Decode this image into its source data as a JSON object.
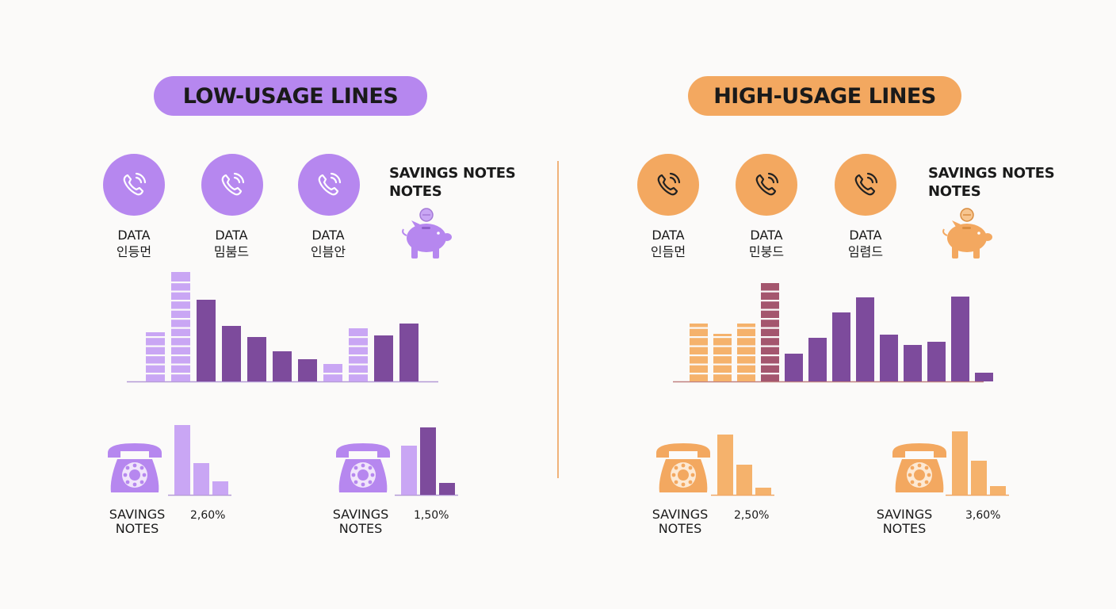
{
  "left": {
    "title": "LOW-USAGE LINES",
    "accent": "#b687ef",
    "accent_dark": "#7a4a9c",
    "phones": [
      {
        "line1": "DATA",
        "line2": "인등먼"
      },
      {
        "line1": "DATA",
        "line2": "밈붐드"
      },
      {
        "line1": "DATA",
        "line2": "인븜안"
      }
    ],
    "savings_heading": [
      "SAVINGS NOTES",
      "NOTES"
    ],
    "icon_names": {
      "phone": "phone-call-icon",
      "pig": "piggy-bank-icon",
      "telephone": "rotary-telephone-icon"
    },
    "sub_charts": [
      {
        "label": [
          "SAVINGS",
          "NOTES"
        ],
        "percent": "2,60%",
        "values": [
          88,
          40,
          17
        ]
      },
      {
        "label": [
          "SAVINGS",
          "NOTES"
        ],
        "percent": "1,50%",
        "values": [
          62,
          85,
          15
        ]
      }
    ]
  },
  "right": {
    "title": "HIGH-USAGE LINES",
    "accent": "#f3a860",
    "accent_dark": "#7a3e78",
    "phones": [
      {
        "line1": "DATA",
        "line2": "인듬먼"
      },
      {
        "line1": "DATA",
        "line2": "민붕드"
      },
      {
        "line1": "DATA",
        "line2": "임렴드"
      }
    ],
    "savings_heading": [
      "SAVINGS NOTES",
      "NOTES"
    ],
    "icon_names": {
      "phone": "phone-call-icon",
      "pig": "piggy-bank-icon",
      "telephone": "rotary-telephone-icon"
    },
    "sub_charts": [
      {
        "label": [
          "SAVINGS",
          "NOTES"
        ],
        "percent": "2,50%",
        "values": [
          76,
          38,
          9
        ]
      },
      {
        "label": [
          "SAVINGS",
          "NOTES"
        ],
        "percent": "3,60%",
        "values": [
          80,
          43,
          11
        ]
      }
    ]
  },
  "chart_data": [
    {
      "type": "bar",
      "series": [
        {
          "values": [
            62,
            138,
            103,
            70,
            56,
            38,
            28,
            22,
            67,
            58,
            73
          ]
        }
      ],
      "styles": [
        "segmented-light",
        "segmented-light",
        "solid-dark",
        "solid-dark",
        "solid-dark",
        "solid-dark",
        "solid-dark",
        "segmented-light",
        "segmented-light",
        "solid-dark",
        "solid-dark"
      ]
    },
    {
      "type": "bar",
      "series": [
        {
          "values": [
            73,
            60,
            73,
            124,
            35,
            55,
            87,
            106,
            59,
            46,
            50,
            107,
            11
          ]
        }
      ],
      "styles": [
        "segmented-orange",
        "segmented-orange",
        "segmented-orange",
        "segmented-mauve",
        "solid-dark",
        "solid-dark",
        "solid-dark",
        "solid-dark",
        "solid-dark",
        "solid-dark",
        "solid-dark",
        "solid-dark",
        "solid-dark"
      ]
    }
  ]
}
